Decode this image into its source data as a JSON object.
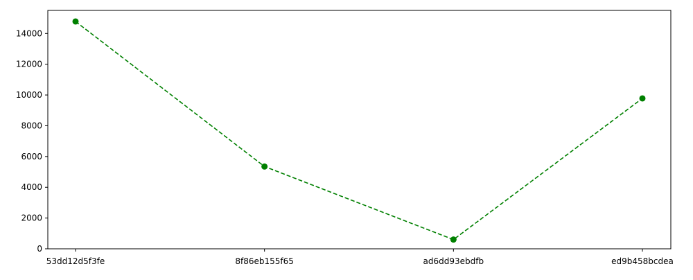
{
  "chart_data": {
    "type": "line",
    "categories": [
      "53dd12d5f3fe",
      "8f86eb155f65",
      "ad6dd93ebdfb",
      "ed9b458bcdea"
    ],
    "series": [
      {
        "values": [
          14780,
          5350,
          600,
          9780
        ],
        "color": "#008000",
        "line_style": "dashed",
        "marker": "circle"
      }
    ],
    "title": "",
    "xlabel": "",
    "ylabel": "",
    "ylim": [
      0,
      15500
    ],
    "yticks": [
      0,
      2000,
      4000,
      6000,
      8000,
      10000,
      12000,
      14000
    ],
    "grid": false,
    "legend": false
  }
}
